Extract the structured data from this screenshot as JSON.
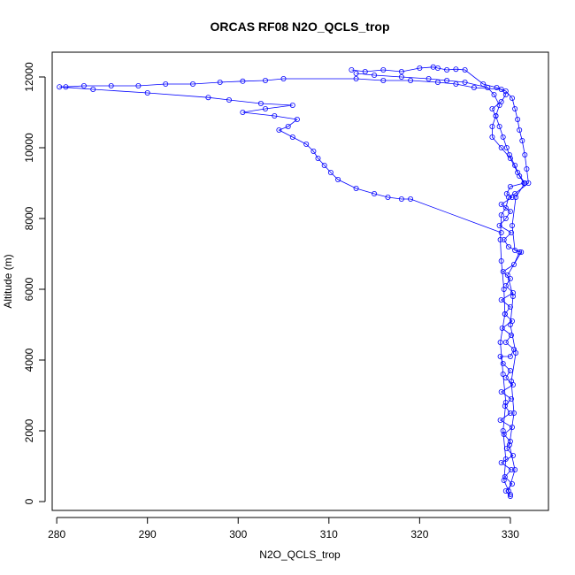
{
  "chart_data": {
    "type": "scatter",
    "title": "ORCAS RF08 N2O_QCLS_trop",
    "xlabel": "N2O_QCLS_trop",
    "ylabel": "Altitude (m)",
    "xlim": [
      279.5,
      334.2
    ],
    "ylim": [
      -250,
      12700
    ],
    "xticks": [
      280,
      290,
      300,
      310,
      320,
      330
    ],
    "yticks": [
      0,
      2000,
      4000,
      6000,
      8000,
      10000,
      12000
    ],
    "grid": false,
    "legend": "none",
    "connected": true,
    "series": [
      {
        "color": "#0000ff",
        "points": [
          [
            330.0,
            150
          ],
          [
            329.5,
            300
          ],
          [
            330.2,
            500
          ],
          [
            329.4,
            700
          ],
          [
            330.1,
            900
          ],
          [
            329.0,
            1100
          ],
          [
            330.3,
            1300
          ],
          [
            329.6,
            1500
          ],
          [
            330.0,
            1700
          ],
          [
            329.3,
            1900
          ],
          [
            330.2,
            2100
          ],
          [
            328.9,
            2300
          ],
          [
            330.0,
            2500
          ],
          [
            329.4,
            2700
          ],
          [
            330.1,
            2900
          ],
          [
            329.0,
            3100
          ],
          [
            330.3,
            3300
          ],
          [
            329.5,
            3500
          ],
          [
            330.0,
            3700
          ],
          [
            329.2,
            3900
          ],
          [
            328.9,
            4100
          ],
          [
            330.0,
            4100
          ],
          [
            330.4,
            4300
          ],
          [
            329.5,
            4500
          ],
          [
            330.1,
            4700
          ],
          [
            329.1,
            4900
          ],
          [
            330.2,
            5100
          ],
          [
            329.4,
            5300
          ],
          [
            330.0,
            5500
          ],
          [
            329.0,
            5700
          ],
          [
            330.3,
            5900
          ],
          [
            329.5,
            6100
          ],
          [
            330.0,
            6300
          ],
          [
            329.2,
            6500
          ],
          [
            330.4,
            6700
          ],
          [
            331.0,
            7050
          ],
          [
            329.8,
            7200
          ],
          [
            329.3,
            7400
          ],
          [
            330.1,
            7600
          ],
          [
            328.8,
            7800
          ],
          [
            329.5,
            8000
          ],
          [
            330.0,
            8200
          ],
          [
            329.0,
            8400
          ],
          [
            330.2,
            8600
          ],
          [
            329.6,
            8700
          ],
          [
            330.0,
            8900
          ],
          [
            331.5,
            9000
          ],
          [
            331.0,
            9200
          ],
          [
            330.5,
            9500
          ],
          [
            329.9,
            9800
          ],
          [
            329.6,
            10000
          ],
          [
            329.2,
            10300
          ],
          [
            328.8,
            10600
          ],
          [
            328.4,
            10900
          ],
          [
            328.0,
            11100
          ],
          [
            329.0,
            11300
          ],
          [
            329.5,
            11500
          ],
          [
            329.0,
            11650
          ],
          [
            326.0,
            11700
          ],
          [
            324.0,
            11800
          ],
          [
            322.0,
            11850
          ],
          [
            319.0,
            11900
          ],
          [
            316.0,
            11900
          ],
          [
            313.0,
            11950
          ],
          [
            305.0,
            11950
          ],
          [
            303.0,
            11900
          ],
          [
            300.5,
            11880
          ],
          [
            298.0,
            11850
          ],
          [
            295.0,
            11800
          ],
          [
            292.0,
            11800
          ],
          [
            289.0,
            11750
          ],
          [
            286.0,
            11750
          ],
          [
            283.0,
            11750
          ],
          [
            281.0,
            11720
          ],
          [
            280.3,
            11720
          ],
          [
            284.0,
            11650
          ],
          [
            290.0,
            11550
          ],
          [
            296.7,
            11420
          ],
          [
            299.0,
            11350
          ],
          [
            302.5,
            11250
          ],
          [
            306.0,
            11200
          ],
          [
            303.0,
            11100
          ],
          [
            300.5,
            11000
          ],
          [
            304.0,
            10900
          ],
          [
            306.5,
            10800
          ],
          [
            305.5,
            10600
          ],
          [
            304.5,
            10500
          ],
          [
            306.0,
            10300
          ],
          [
            307.5,
            10100
          ],
          [
            308.3,
            9900
          ],
          [
            308.8,
            9700
          ],
          [
            309.5,
            9500
          ],
          [
            310.2,
            9300
          ],
          [
            311.0,
            9100
          ],
          [
            313.0,
            8850
          ],
          [
            315.0,
            8700
          ],
          [
            316.5,
            8600
          ],
          [
            318.0,
            8550
          ],
          [
            319.0,
            8550
          ],
          [
            329.0,
            7600
          ]
        ]
      },
      {
        "color": "#0000ff",
        "points": [
          [
            312.5,
            12200
          ],
          [
            314.0,
            12150
          ],
          [
            316.0,
            12200
          ],
          [
            318.0,
            12150
          ],
          [
            320.0,
            12250
          ],
          [
            321.5,
            12280
          ],
          [
            322.0,
            12250
          ],
          [
            323.0,
            12200
          ],
          [
            324.0,
            12220
          ],
          [
            325.0,
            12200
          ],
          [
            327.0,
            11800
          ],
          [
            328.5,
            11700
          ],
          [
            329.5,
            11600
          ],
          [
            330.2,
            11400
          ],
          [
            330.5,
            11100
          ],
          [
            330.8,
            10800
          ],
          [
            331.0,
            10500
          ],
          [
            331.3,
            10200
          ],
          [
            331.6,
            9800
          ],
          [
            331.8,
            9400
          ],
          [
            332.0,
            9000
          ],
          [
            330.5,
            8700
          ],
          [
            329.8,
            8600
          ],
          [
            329.5,
            8300
          ],
          [
            329.0,
            8100
          ],
          [
            328.9,
            7400
          ],
          [
            329.0,
            6800
          ],
          [
            329.3,
            6000
          ],
          [
            329.4,
            5300
          ],
          [
            328.9,
            4500
          ],
          [
            329.2,
            3600
          ],
          [
            329.5,
            2800
          ],
          [
            329.2,
            2000
          ],
          [
            329.5,
            1200
          ],
          [
            329.3,
            600
          ],
          [
            330.0,
            200
          ]
        ]
      },
      {
        "color": "#0000ff",
        "points": [
          [
            313.0,
            12100
          ],
          [
            315.0,
            12050
          ],
          [
            318.0,
            12000
          ],
          [
            321.0,
            11950
          ],
          [
            323.0,
            11900
          ],
          [
            325.0,
            11850
          ],
          [
            327.5,
            11700
          ],
          [
            328.2,
            11500
          ],
          [
            328.8,
            11200
          ],
          [
            328.4,
            10900
          ],
          [
            328.0,
            10600
          ],
          [
            328.0,
            10300
          ],
          [
            329.0,
            10000
          ],
          [
            330.0,
            9700
          ],
          [
            330.8,
            9300
          ],
          [
            331.6,
            9000
          ],
          [
            330.6,
            8600
          ],
          [
            330.2,
            7800
          ],
          [
            330.5,
            7100
          ],
          [
            331.2,
            7050
          ],
          [
            329.7,
            6400
          ],
          [
            330.3,
            5800
          ],
          [
            330.0,
            5000
          ],
          [
            330.6,
            4200
          ],
          [
            330.1,
            3400
          ],
          [
            330.4,
            2500
          ],
          [
            329.9,
            1600
          ],
          [
            330.5,
            900
          ],
          [
            329.8,
            300
          ]
        ]
      }
    ]
  }
}
